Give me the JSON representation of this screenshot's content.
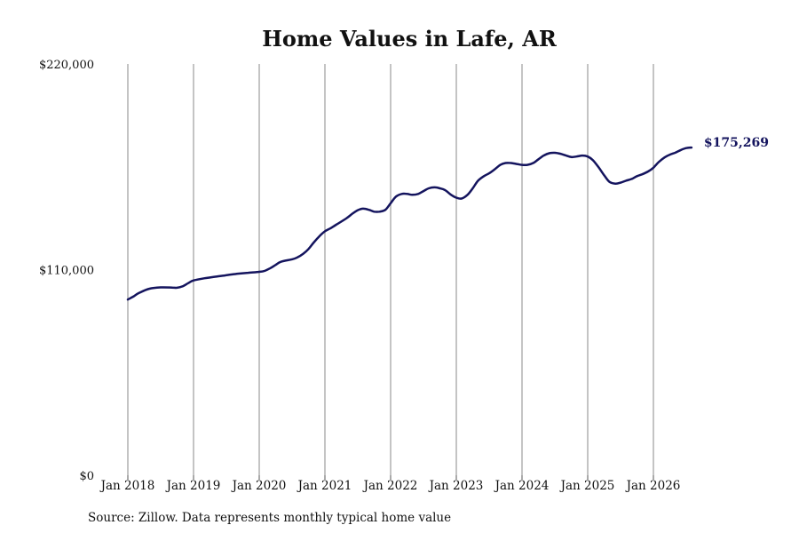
{
  "chart_data": {
    "type": "line",
    "title": "Home Values in Lafe, AR",
    "source": "Source: Zillow. Data represents monthly typical home value",
    "ylim": [
      0,
      220000
    ],
    "y_ticks": [
      {
        "value": 0,
        "label": "$0"
      },
      {
        "value": 110000,
        "label": "$110,000"
      },
      {
        "value": 220000,
        "label": "$220,000"
      }
    ],
    "x_ticks": [
      {
        "value": 2018.0,
        "label": "Jan 2018"
      },
      {
        "value": 2019.0,
        "label": "Jan 2019"
      },
      {
        "value": 2020.0,
        "label": "Jan 2020"
      },
      {
        "value": 2021.0,
        "label": "Jan 2021"
      },
      {
        "value": 2022.0,
        "label": "Jan 2022"
      },
      {
        "value": 2023.0,
        "label": "Jan 2023"
      },
      {
        "value": 2024.0,
        "label": "Jan 2024"
      },
      {
        "value": 2025.0,
        "label": "Jan 2025"
      },
      {
        "value": 2026.0,
        "label": "Jan 2026"
      }
    ],
    "xlim": [
      2018.0,
      2026.6
    ],
    "grid": "vertical",
    "line_color": "#14145e",
    "end_label": "$175,269",
    "series": [
      {
        "points": [
          [
            2018.0,
            94000
          ],
          [
            2018.08,
            95500
          ],
          [
            2018.17,
            97500
          ],
          [
            2018.33,
            99800
          ],
          [
            2018.5,
            100500
          ],
          [
            2018.67,
            100400
          ],
          [
            2018.75,
            100300
          ],
          [
            2018.83,
            101000
          ],
          [
            2018.92,
            102800
          ],
          [
            2019.0,
            104200
          ],
          [
            2019.17,
            105400
          ],
          [
            2019.33,
            106200
          ],
          [
            2019.5,
            107000
          ],
          [
            2019.67,
            107800
          ],
          [
            2019.83,
            108300
          ],
          [
            2020.0,
            108800
          ],
          [
            2020.08,
            109300
          ],
          [
            2020.17,
            110800
          ],
          [
            2020.25,
            112500
          ],
          [
            2020.33,
            114200
          ],
          [
            2020.5,
            115500
          ],
          [
            2020.58,
            116500
          ],
          [
            2020.67,
            118500
          ],
          [
            2020.75,
            121000
          ],
          [
            2020.83,
            124500
          ],
          [
            2020.92,
            128000
          ],
          [
            2021.0,
            130500
          ],
          [
            2021.08,
            132000
          ],
          [
            2021.17,
            134000
          ],
          [
            2021.33,
            137500
          ],
          [
            2021.42,
            140000
          ],
          [
            2021.5,
            141800
          ],
          [
            2021.58,
            142600
          ],
          [
            2021.67,
            142000
          ],
          [
            2021.75,
            141000
          ],
          [
            2021.83,
            141000
          ],
          [
            2021.92,
            142000
          ],
          [
            2022.0,
            145500
          ],
          [
            2022.08,
            149000
          ],
          [
            2022.17,
            150500
          ],
          [
            2022.25,
            150500
          ],
          [
            2022.33,
            150000
          ],
          [
            2022.42,
            150500
          ],
          [
            2022.5,
            152000
          ],
          [
            2022.58,
            153500
          ],
          [
            2022.67,
            154000
          ],
          [
            2022.75,
            153500
          ],
          [
            2022.83,
            152500
          ],
          [
            2022.92,
            150000
          ],
          [
            2023.0,
            148500
          ],
          [
            2023.08,
            148000
          ],
          [
            2023.17,
            150000
          ],
          [
            2023.25,
            153500
          ],
          [
            2023.33,
            157500
          ],
          [
            2023.42,
            160000
          ],
          [
            2023.5,
            161500
          ],
          [
            2023.58,
            163500
          ],
          [
            2023.67,
            166000
          ],
          [
            2023.75,
            167000
          ],
          [
            2023.83,
            167000
          ],
          [
            2023.92,
            166500
          ],
          [
            2024.0,
            166000
          ],
          [
            2024.08,
            166000
          ],
          [
            2024.17,
            167000
          ],
          [
            2024.25,
            169000
          ],
          [
            2024.33,
            171000
          ],
          [
            2024.42,
            172300
          ],
          [
            2024.5,
            172500
          ],
          [
            2024.58,
            172000
          ],
          [
            2024.67,
            171000
          ],
          [
            2024.75,
            170200
          ],
          [
            2024.83,
            170500
          ],
          [
            2024.92,
            171000
          ],
          [
            2025.0,
            170500
          ],
          [
            2025.08,
            168500
          ],
          [
            2025.17,
            164500
          ],
          [
            2025.25,
            160500
          ],
          [
            2025.33,
            157000
          ],
          [
            2025.42,
            156000
          ],
          [
            2025.5,
            156500
          ],
          [
            2025.58,
            157500
          ],
          [
            2025.67,
            158500
          ],
          [
            2025.75,
            160000
          ],
          [
            2025.83,
            161000
          ],
          [
            2025.92,
            162500
          ],
          [
            2026.0,
            164500
          ],
          [
            2026.08,
            167500
          ],
          [
            2026.17,
            170000
          ],
          [
            2026.25,
            171500
          ],
          [
            2026.33,
            172500
          ],
          [
            2026.42,
            174000
          ],
          [
            2026.5,
            175000
          ],
          [
            2026.58,
            175269
          ]
        ]
      }
    ]
  }
}
